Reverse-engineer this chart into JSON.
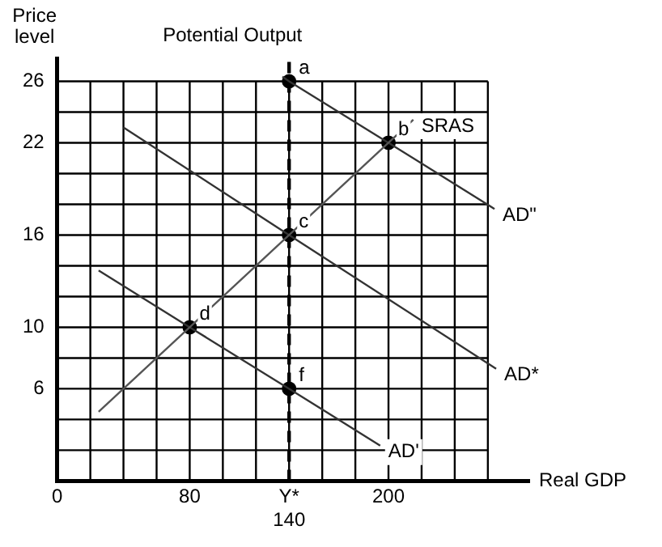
{
  "chart_data": {
    "type": "line",
    "xlabel": "Real GDP",
    "ylabel": "Price level",
    "xlim": [
      0,
      285
    ],
    "ylim": [
      0,
      27.5
    ],
    "xticks": [
      0,
      {
        "value": 20,
        "label": null
      },
      {
        "value": 40,
        "label": null
      },
      {
        "value": 60,
        "label": null
      },
      80,
      {
        "value": 100,
        "label": null
      },
      {
        "value": 120,
        "label": null
      },
      {
        "value": 140,
        "label": "Y*\n140"
      },
      {
        "value": 160,
        "label": null
      },
      {
        "value": 180,
        "label": null
      },
      200,
      {
        "value": 220,
        "label": null
      },
      {
        "value": 240,
        "label": null
      },
      {
        "value": 260,
        "label": null
      }
    ],
    "yticks": [
      {
        "value": 0,
        "label": null
      },
      {
        "value": 2,
        "label": null
      },
      {
        "value": 4,
        "label": null
      },
      6,
      {
        "value": 8,
        "label": null
      },
      10,
      {
        "value": 12,
        "label": null
      },
      {
        "value": 14,
        "label": null
      },
      16,
      {
        "value": 18,
        "label": null
      },
      {
        "value": 20,
        "label": null
      },
      22,
      {
        "value": 24,
        "label": null
      },
      26
    ],
    "grid": true,
    "legend": false,
    "marker": "none",
    "series": [
      {
        "name": "SRAS",
        "color": "#555555",
        "x": [
          25,
          80,
          140,
          200,
          215
        ],
        "values": [
          4.5,
          10,
          16,
          22,
          23.5
        ]
      },
      {
        "name": "AD\"",
        "color": "#333333",
        "x": [
          136,
          140,
          200,
          264
        ],
        "values": [
          26.3,
          26,
          22,
          17.7
        ]
      },
      {
        "name": "AD*",
        "color": "#333333",
        "x": [
          40,
          140,
          265
        ],
        "values": [
          23,
          16,
          7.3
        ]
      },
      {
        "name": "AD'",
        "color": "#333333",
        "x": [
          25,
          80,
          140,
          195
        ],
        "values": [
          13.7,
          10,
          6,
          2.3
        ]
      },
      {
        "type": "scatter",
        "color": "#000000",
        "marker": "circle",
        "x": [
          140,
          200,
          140,
          80,
          140
        ],
        "values": [
          26,
          22,
          16,
          10,
          6
        ]
      }
    ],
    "ref_lines": [
      {
        "axis": "x",
        "value": 140,
        "label": "Potential Output",
        "color": "#000000",
        "line_style": "dashed"
      }
    ],
    "annotations": [
      {
        "text": "a",
        "x": 140,
        "y": 26
      },
      {
        "text": "b",
        "x": 200,
        "y": 22
      },
      {
        "text": "c",
        "x": 140,
        "y": 16
      },
      {
        "text": "d",
        "x": 80,
        "y": 10
      },
      {
        "text": "f",
        "x": 140,
        "y": 6
      }
    ]
  }
}
